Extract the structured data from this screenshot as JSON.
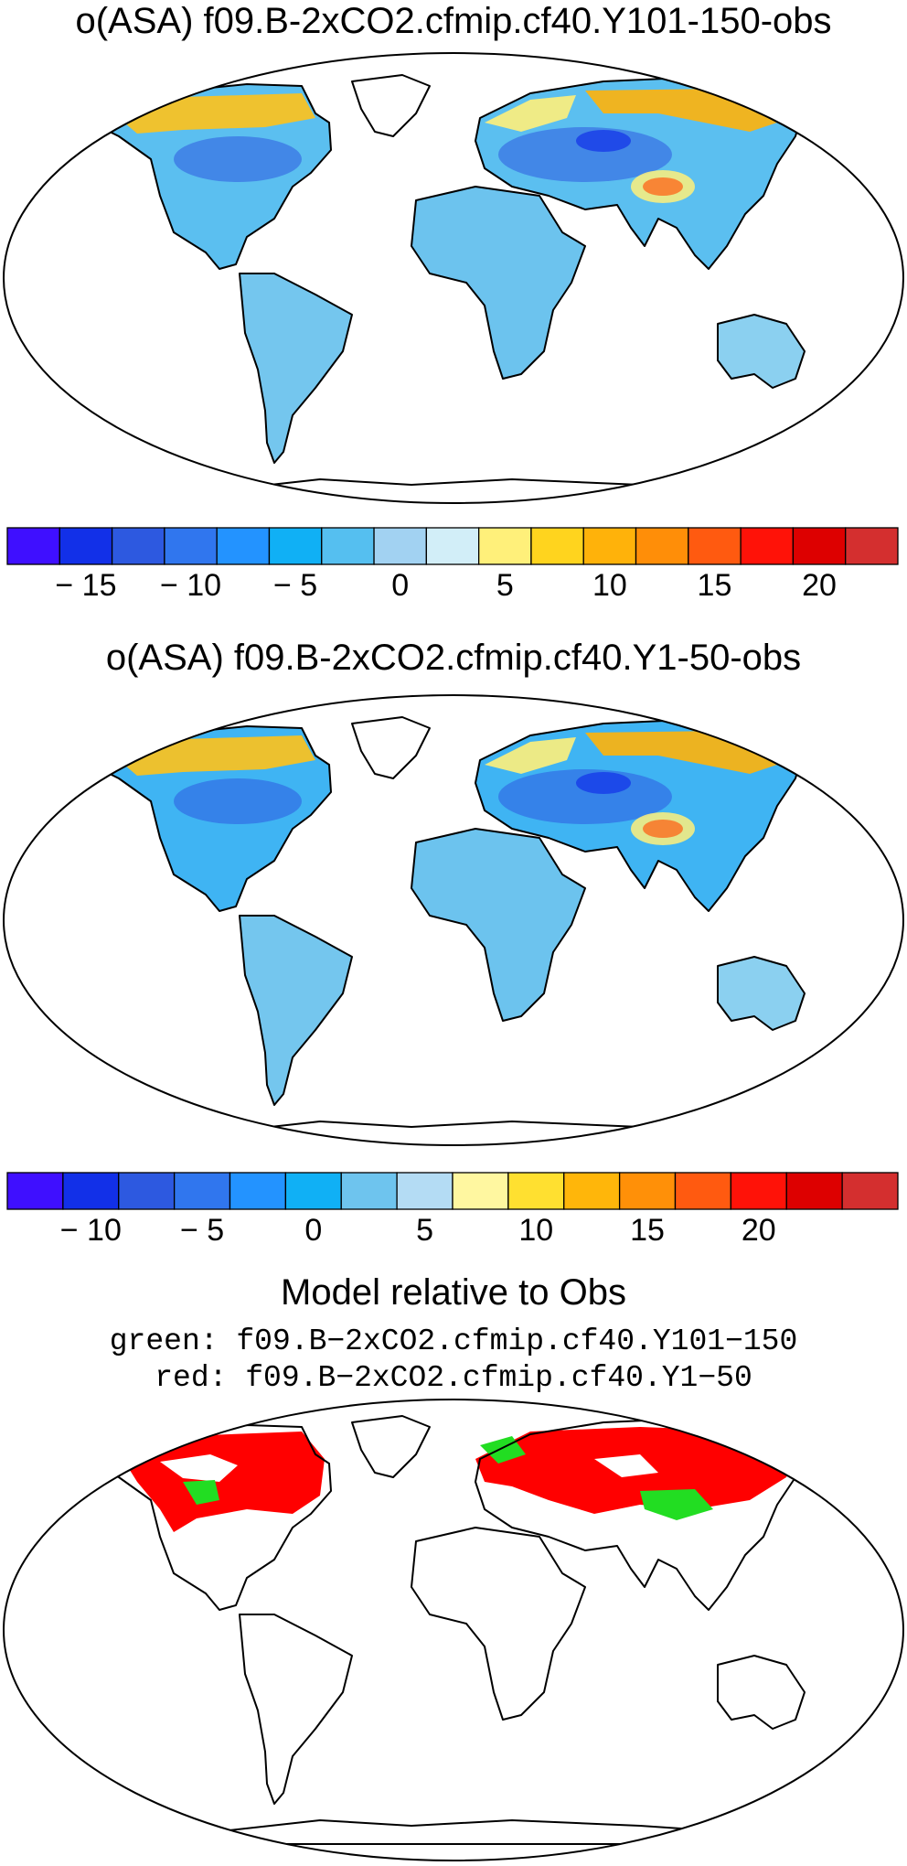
{
  "panels": [
    {
      "title": "o(ASA) f09.B-2xCO2.cfmip.cf40.Y101-150-obs",
      "colorbar": {
        "colors": [
          "#3f0fff",
          "#1230e8",
          "#2d59e0",
          "#3076ee",
          "#2393ff",
          "#10b0f5",
          "#55bff0",
          "#a2d2f2",
          "#d2eef8",
          "#fff07a",
          "#ffd41e",
          "#ffb20a",
          "#ff8e08",
          "#ff5a10",
          "#ff1208",
          "#dd0000",
          "#d42f2f"
        ],
        "tick_labels": [
          "-15",
          "-10",
          "-5",
          "0",
          "5",
          "10",
          "15",
          "20"
        ],
        "tick_positions": [
          1.5,
          3.5,
          5.5,
          7.5,
          9.5,
          11.5,
          13.5,
          15.5
        ]
      }
    },
    {
      "title": "o(ASA) f09.B-2xCO2.cfmip.cf40.Y1-50-obs",
      "colorbar": {
        "colors": [
          "#3f0fff",
          "#1230e8",
          "#2d59e0",
          "#3076ee",
          "#2393ff",
          "#10b0f5",
          "#6ec4ee",
          "#b4dcf4",
          "#fff7a0",
          "#ffe030",
          "#ffb60a",
          "#ff9008",
          "#ff5a10",
          "#ff1208",
          "#dd0000",
          "#d42f2f"
        ],
        "tick_labels": [
          "-10",
          "-5",
          "0",
          "5",
          "10",
          "15",
          "20"
        ],
        "tick_positions": [
          1.5,
          3.5,
          5.5,
          7.5,
          9.5,
          11.5,
          13.5
        ]
      }
    }
  ],
  "comparison": {
    "title": "Model relative to Obs",
    "line1": "green: f09.B−2xCO2.cfmip.cf40.Y101−150",
    "line2": "red: f09.B−2xCO2.cfmip.cf40.Y1−50",
    "colors": {
      "green": "#22dd22",
      "red": "#ff0000"
    }
  }
}
